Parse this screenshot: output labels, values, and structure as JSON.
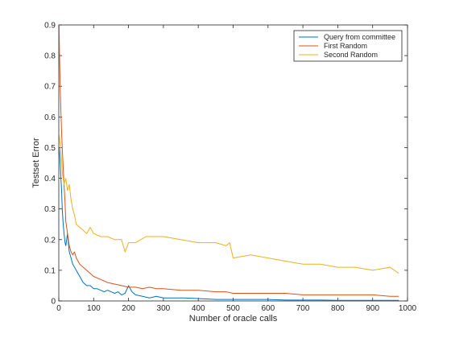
{
  "chart_data": {
    "type": "line",
    "xlabel": "Number of oracle calls",
    "ylabel": "Testset Error",
    "xlim": [
      0,
      1000
    ],
    "ylim": [
      0,
      0.9
    ],
    "xticks": [
      "0",
      "100",
      "200",
      "300",
      "400",
      "500",
      "600",
      "700",
      "800",
      "900",
      "1000"
    ],
    "yticks": [
      "0",
      "0.1",
      "0.2",
      "0.3",
      "0.4",
      "0.5",
      "0.6",
      "0.7",
      "0.8",
      "0.9"
    ],
    "grid": false,
    "legend_position": "top-right",
    "series": [
      {
        "name": "Query from committee",
        "color": "#0072BD",
        "x": [
          1,
          3,
          5,
          8,
          10,
          12,
          15,
          18,
          20,
          25,
          30,
          35,
          40,
          45,
          50,
          55,
          60,
          65,
          70,
          80,
          90,
          100,
          110,
          120,
          130,
          140,
          150,
          160,
          170,
          180,
          190,
          200,
          210,
          220,
          240,
          260,
          280,
          300,
          330,
          360,
          400,
          450,
          500,
          550,
          600,
          650,
          700,
          750,
          800,
          850,
          900,
          950,
          975
        ],
        "y": [
          0.5,
          0.47,
          0.42,
          0.36,
          0.3,
          0.26,
          0.22,
          0.19,
          0.18,
          0.22,
          0.16,
          0.14,
          0.12,
          0.11,
          0.1,
          0.09,
          0.08,
          0.07,
          0.06,
          0.05,
          0.05,
          0.04,
          0.04,
          0.035,
          0.03,
          0.035,
          0.03,
          0.025,
          0.03,
          0.02,
          0.025,
          0.05,
          0.03,
          0.02,
          0.015,
          0.01,
          0.015,
          0.01,
          0.01,
          0.01,
          0.008,
          0.005,
          0.005,
          0.005,
          0.005,
          0.003,
          0.003,
          0.003,
          0.002,
          0.002,
          0.002,
          0.002,
          0.002
        ]
      },
      {
        "name": "First Random",
        "color": "#D95319",
        "x": [
          1,
          2,
          4,
          6,
          8,
          10,
          12,
          15,
          18,
          20,
          25,
          30,
          35,
          40,
          45,
          50,
          60,
          70,
          80,
          90,
          100,
          120,
          140,
          160,
          180,
          200,
          220,
          240,
          260,
          280,
          300,
          350,
          400,
          450,
          480,
          500,
          550,
          600,
          650,
          700,
          750,
          800,
          850,
          900,
          950,
          975
        ],
        "y": [
          0.9,
          0.8,
          0.7,
          0.62,
          0.55,
          0.5,
          0.45,
          0.38,
          0.32,
          0.26,
          0.22,
          0.18,
          0.16,
          0.15,
          0.16,
          0.14,
          0.12,
          0.11,
          0.1,
          0.09,
          0.08,
          0.07,
          0.06,
          0.055,
          0.05,
          0.045,
          0.045,
          0.04,
          0.045,
          0.04,
          0.04,
          0.035,
          0.035,
          0.03,
          0.03,
          0.025,
          0.025,
          0.025,
          0.025,
          0.02,
          0.02,
          0.02,
          0.02,
          0.02,
          0.015,
          0.015
        ]
      },
      {
        "name": "Second Random",
        "color": "#EDB120",
        "x": [
          1,
          3,
          5,
          8,
          10,
          15,
          20,
          25,
          30,
          35,
          40,
          45,
          50,
          60,
          70,
          80,
          90,
          100,
          120,
          140,
          160,
          180,
          190,
          200,
          220,
          250,
          300,
          350,
          400,
          450,
          480,
          490,
          500,
          550,
          600,
          650,
          700,
          750,
          800,
          850,
          900,
          950,
          975
        ],
        "y": [
          0.55,
          0.52,
          0.5,
          0.46,
          0.42,
          0.38,
          0.4,
          0.36,
          0.38,
          0.33,
          0.3,
          0.28,
          0.25,
          0.24,
          0.23,
          0.22,
          0.24,
          0.22,
          0.21,
          0.21,
          0.2,
          0.2,
          0.16,
          0.19,
          0.19,
          0.21,
          0.21,
          0.2,
          0.19,
          0.19,
          0.18,
          0.19,
          0.14,
          0.15,
          0.14,
          0.13,
          0.12,
          0.12,
          0.11,
          0.11,
          0.1,
          0.11,
          0.09
        ]
      }
    ]
  }
}
